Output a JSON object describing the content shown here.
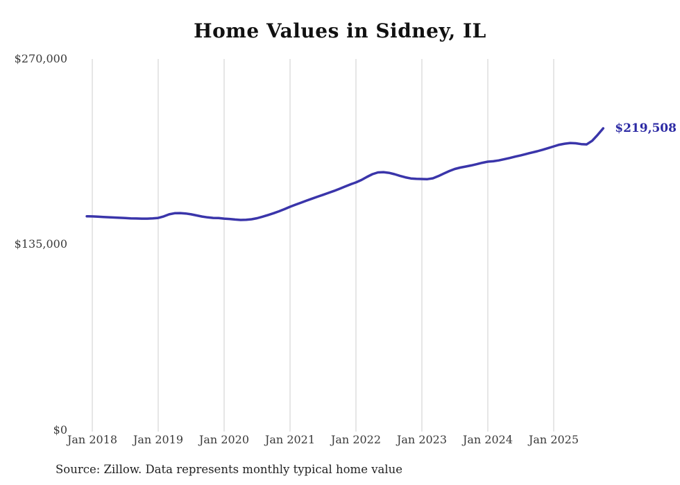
{
  "title": "Home Values in Sidney, IL",
  "end_label": "$219,508",
  "source": "Source: Zillow. Data represents monthly typical home value",
  "colors": {
    "line": "#3a35aa",
    "end_label": "#2c2aa4",
    "grid": "#cdcdcd",
    "axis_text": "#3a3a3a"
  },
  "y_axis": {
    "labels": [
      "$270,000",
      "$135,000",
      "$0"
    ],
    "min": 0,
    "max": 270000
  },
  "x_axis": {
    "labels": [
      "Jan 2018",
      "Jan 2019",
      "Jan 2020",
      "Jan 2021",
      "Jan 2022",
      "Jan 2023",
      "Jan 2024",
      "Jan 2025"
    ]
  },
  "chart_data": {
    "type": "line",
    "title": "Home Values in Sidney, IL",
    "xlabel": "",
    "ylabel": "",
    "ylim": [
      0,
      270000
    ],
    "grid": "vertical",
    "legend": "none",
    "annotation": "$219,508",
    "x": [
      "2017-12",
      "2018-01",
      "2018-02",
      "2018-03",
      "2018-04",
      "2018-05",
      "2018-06",
      "2018-07",
      "2018-08",
      "2018-09",
      "2018-10",
      "2018-11",
      "2018-12",
      "2019-01",
      "2019-02",
      "2019-03",
      "2019-04",
      "2019-05",
      "2019-06",
      "2019-07",
      "2019-08",
      "2019-09",
      "2019-10",
      "2019-11",
      "2019-12",
      "2020-01",
      "2020-02",
      "2020-03",
      "2020-04",
      "2020-05",
      "2020-06",
      "2020-07",
      "2020-08",
      "2020-09",
      "2020-10",
      "2020-11",
      "2020-12",
      "2021-01",
      "2021-02",
      "2021-03",
      "2021-04",
      "2021-05",
      "2021-06",
      "2021-07",
      "2021-08",
      "2021-09",
      "2021-10",
      "2021-11",
      "2021-12",
      "2022-01",
      "2022-02",
      "2022-03",
      "2022-04",
      "2022-05",
      "2022-06",
      "2022-07",
      "2022-08",
      "2022-09",
      "2022-10",
      "2022-11",
      "2022-12",
      "2023-01",
      "2023-02",
      "2023-03",
      "2023-04",
      "2023-05",
      "2023-06",
      "2023-07",
      "2023-08",
      "2023-09",
      "2023-10",
      "2023-11",
      "2023-12",
      "2024-01",
      "2024-02",
      "2024-03",
      "2024-04",
      "2024-05",
      "2024-06",
      "2024-07",
      "2024-08",
      "2024-09",
      "2024-10",
      "2024-11",
      "2024-12",
      "2025-01",
      "2025-02",
      "2025-03",
      "2025-04",
      "2025-05",
      "2025-06",
      "2025-07",
      "2025-08",
      "2025-09",
      "2025-10"
    ],
    "values": [
      155600,
      155500,
      155300,
      155100,
      154900,
      154700,
      154500,
      154300,
      154100,
      154000,
      153900,
      153900,
      154100,
      154400,
      155500,
      157000,
      157800,
      157900,
      157600,
      157000,
      156200,
      155400,
      154800,
      154400,
      154300,
      153900,
      153600,
      153200,
      152900,
      153000,
      153400,
      154200,
      155300,
      156500,
      157800,
      159200,
      160800,
      162500,
      164000,
      165500,
      167000,
      168400,
      169800,
      171200,
      172600,
      174000,
      175600,
      177200,
      178800,
      180200,
      182000,
      184200,
      186200,
      187500,
      187700,
      187200,
      186200,
      185000,
      183900,
      183100,
      182800,
      182700,
      182600,
      183200,
      184800,
      186700,
      188500,
      190000,
      191000,
      191800,
      192600,
      193500,
      194500,
      195300,
      195600,
      196200,
      197100,
      198000,
      199000,
      199900,
      200900,
      201900,
      202900,
      204000,
      205200,
      206400,
      207600,
      208400,
      208900,
      208700,
      208100,
      207900,
      210500,
      214800,
      219508
    ]
  }
}
